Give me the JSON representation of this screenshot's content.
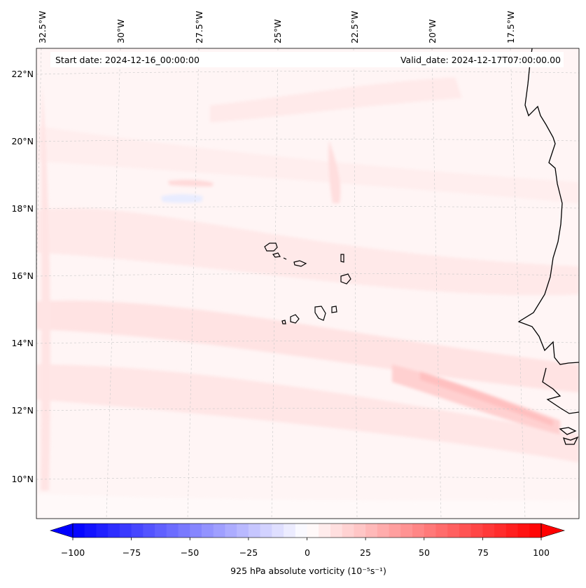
{
  "map": {
    "start_date": "Start date: 2024-12-16_00:00:00",
    "valid_date": "Valid_date: 2024-12-17T07:00:00.00",
    "lat_labels": [
      "22°N",
      "20°N",
      "18°N",
      "16°N",
      "14°N",
      "12°N",
      "10°N"
    ],
    "lon_labels": [
      "32.5°W",
      "30°W",
      "27.5°W",
      "25°W",
      "22.5°W",
      "20°W",
      "17.5°W"
    ],
    "colors": {
      "negative": "#0000ff",
      "zero": "#ffffff",
      "positive": "#ff0000",
      "coast": "#000000",
      "grid": "#bbbbbb"
    }
  },
  "colorbar": {
    "ticks": [
      "−100",
      "−75",
      "−50",
      "−25",
      "0",
      "25",
      "50",
      "75",
      "100"
    ],
    "label": "925 hPa absolute vorticity (10⁻⁵s⁻¹)"
  }
}
